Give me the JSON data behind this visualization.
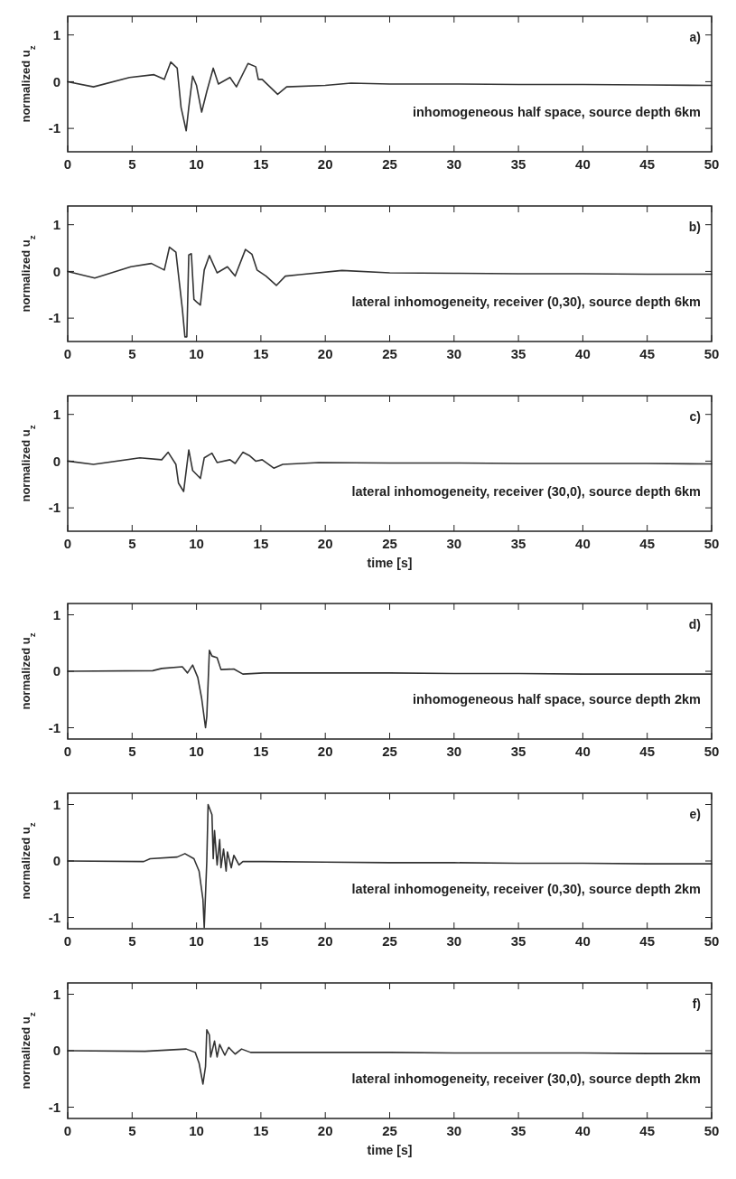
{
  "chart_data": [
    {
      "type": "line",
      "ylabel": "normalized u$_{z}$",
      "annotations": [
        "a)",
        "inhomogeneous half space, source depth 6km"
      ],
      "xlim": [
        0,
        50
      ],
      "xticks": [
        0,
        5,
        10,
        15,
        20,
        25,
        30,
        35,
        40,
        45,
        50
      ],
      "ylim": [
        -1.5,
        1.4
      ],
      "yticks": [
        -1,
        0,
        1
      ],
      "color": "#333333",
      "x": [
        0,
        2,
        4.8,
        6.7,
        7.5,
        8,
        8.5,
        8.8,
        9.2,
        9.4,
        9.7,
        10,
        10.4,
        10.8,
        11.3,
        11.7,
        12.6,
        13.1,
        14,
        14.6,
        14.8,
        15.1,
        16.3,
        17,
        20,
        22,
        25,
        30,
        35,
        40,
        45,
        50
      ],
      "values": [
        0,
        -0.11,
        0.09,
        0.15,
        0.05,
        0.42,
        0.29,
        -0.55,
        -1.05,
        -0.55,
        0.12,
        -0.08,
        -0.65,
        -0.21,
        0.29,
        -0.05,
        0.09,
        -0.11,
        0.39,
        0.32,
        0.05,
        0.05,
        -0.27,
        -0.11,
        -0.08,
        -0.03,
        -0.05,
        -0.05,
        -0.06,
        -0.06,
        -0.07,
        -0.08
      ]
    },
    {
      "type": "line",
      "ylabel": "normalized u$_{z}$",
      "annotations": [
        "b)",
        "lateral inhomogeneity, receiver (0,30), source depth 6km"
      ],
      "xlim": [
        0,
        50
      ],
      "xticks": [
        0,
        5,
        10,
        15,
        20,
        25,
        30,
        35,
        40,
        45,
        50
      ],
      "ylim": [
        -1.5,
        1.4
      ],
      "yticks": [
        -1,
        0,
        1
      ],
      "color": "#333333",
      "x": [
        0,
        2.1,
        4.9,
        6.5,
        7.5,
        7.9,
        8.4,
        8.9,
        9.1,
        9.25,
        9.4,
        9.6,
        9.8,
        10,
        10.3,
        10.6,
        11,
        11.6,
        12.4,
        13,
        13.8,
        14.3,
        14.7,
        15.4,
        16.2,
        16.9,
        18,
        21.3,
        25,
        30,
        35,
        40,
        45,
        50
      ],
      "values": [
        0,
        -0.14,
        0.1,
        0.17,
        0.03,
        0.52,
        0.41,
        -0.8,
        -1.4,
        -1.4,
        0.35,
        0.38,
        -0.6,
        -0.65,
        -0.72,
        0.03,
        0.34,
        -0.03,
        0.1,
        -0.1,
        0.47,
        0.37,
        0.03,
        -0.1,
        -0.3,
        -0.1,
        -0.07,
        0.02,
        -0.03,
        -0.04,
        -0.05,
        -0.05,
        -0.06,
        -0.06
      ]
    },
    {
      "type": "line",
      "xlabel": "time [s]",
      "ylabel": "normalized u$_{z}$",
      "annotations": [
        "c)",
        "lateral inhomogeneity, receiver (30,0), source depth 6km"
      ],
      "xlim": [
        0,
        50
      ],
      "xticks": [
        0,
        5,
        10,
        15,
        20,
        25,
        30,
        35,
        40,
        45,
        50
      ],
      "ylim": [
        -1.5,
        1.4
      ],
      "yticks": [
        -1,
        0,
        1
      ],
      "color": "#333333",
      "x": [
        0,
        2,
        5.6,
        7.3,
        7.8,
        8.4,
        8.6,
        9,
        9.4,
        9.7,
        10.3,
        10.6,
        11.2,
        11.6,
        12.6,
        13,
        13.6,
        14.1,
        14.6,
        15.1,
        16,
        16.7,
        19.5,
        25,
        30,
        35,
        40,
        45,
        50
      ],
      "values": [
        0,
        -0.07,
        0.07,
        0.03,
        0.19,
        -0.07,
        -0.47,
        -0.65,
        0.24,
        -0.2,
        -0.37,
        0.07,
        0.17,
        -0.03,
        0.03,
        -0.05,
        0.19,
        0.12,
        0,
        0.03,
        -0.15,
        -0.07,
        -0.03,
        -0.04,
        -0.04,
        -0.05,
        -0.05,
        -0.05,
        -0.06
      ]
    },
    {
      "type": "line",
      "ylabel": "normalized u$_{z}$",
      "annotations": [
        "d)",
        "inhomogeneous half space, source depth 2km"
      ],
      "xlim": [
        0,
        50
      ],
      "xticks": [
        0,
        5,
        10,
        15,
        20,
        25,
        30,
        35,
        40,
        45,
        50
      ],
      "ylim": [
        -1.2,
        1.2
      ],
      "yticks": [
        -1,
        0,
        1
      ],
      "color": "#333333",
      "x": [
        0,
        6.6,
        7.3,
        8.9,
        9.3,
        9.7,
        10.1,
        10.4,
        10.7,
        10.8,
        11,
        11.2,
        11.6,
        11.9,
        12.9,
        13.6,
        15.2,
        20,
        25,
        30,
        35,
        40,
        45,
        50
      ],
      "values": [
        0,
        0.01,
        0.05,
        0.08,
        -0.03,
        0.11,
        -0.11,
        -0.48,
        -1,
        -0.8,
        0.37,
        0.27,
        0.24,
        0.03,
        0.04,
        -0.05,
        -0.03,
        -0.03,
        -0.03,
        -0.04,
        -0.04,
        -0.05,
        -0.05,
        -0.05
      ]
    },
    {
      "type": "line",
      "ylabel": "normalized u$_{z}$",
      "annotations": [
        "e)",
        "lateral inhomogeneity, receiver (0,30), source depth 2km"
      ],
      "xlim": [
        0,
        50
      ],
      "xticks": [
        0,
        5,
        10,
        15,
        20,
        25,
        30,
        35,
        40,
        45,
        50
      ],
      "ylim": [
        -1.2,
        1.2
      ],
      "yticks": [
        -1,
        0,
        1
      ],
      "color": "#333333",
      "x": [
        0,
        5.9,
        6.4,
        8.5,
        9.1,
        9.8,
        10.2,
        10.5,
        10.6,
        10.8,
        10.9,
        11.2,
        11.3,
        11.4,
        11.6,
        11.8,
        11.9,
        12.1,
        12.3,
        12.4,
        12.7,
        12.9,
        13.3,
        13.6,
        15.2,
        20,
        25,
        30,
        35,
        40,
        45,
        50
      ],
      "values": [
        0,
        -0.01,
        0.04,
        0.07,
        0.13,
        0.04,
        -0.18,
        -0.68,
        -1.18,
        0,
        1,
        0.82,
        0.04,
        0.54,
        -0.07,
        0.38,
        -0.12,
        0.21,
        -0.18,
        0.16,
        -0.12,
        0.1,
        -0.07,
        -0.01,
        -0.01,
        -0.02,
        -0.03,
        -0.03,
        -0.04,
        -0.04,
        -0.05,
        -0.05
      ]
    },
    {
      "type": "line",
      "xlabel": "time [s]",
      "ylabel": "normalized u$_{z}$",
      "annotations": [
        "f)",
        "lateral inhomogeneity, receiver (30,0), source depth 2km"
      ],
      "xlim": [
        0,
        50
      ],
      "xticks": [
        0,
        5,
        10,
        15,
        20,
        25,
        30,
        35,
        40,
        45,
        50
      ],
      "ylim": [
        -1.2,
        1.2
      ],
      "yticks": [
        -1,
        0,
        1
      ],
      "color": "#333333",
      "x": [
        0,
        6,
        9.2,
        9.9,
        10.2,
        10.5,
        10.7,
        10.8,
        11,
        11.1,
        11.4,
        11.6,
        11.8,
        12.2,
        12.5,
        13,
        13.5,
        14.2,
        15.1,
        20,
        25,
        30,
        35,
        40,
        45,
        50
      ],
      "values": [
        0,
        -0.01,
        0.03,
        -0.03,
        -0.22,
        -0.59,
        -0.28,
        0.37,
        0.28,
        -0.11,
        0.17,
        -0.11,
        0.11,
        -0.08,
        0.06,
        -0.06,
        0.03,
        -0.03,
        -0.03,
        -0.03,
        -0.03,
        -0.04,
        -0.04,
        -0.04,
        -0.05,
        -0.05
      ]
    }
  ]
}
